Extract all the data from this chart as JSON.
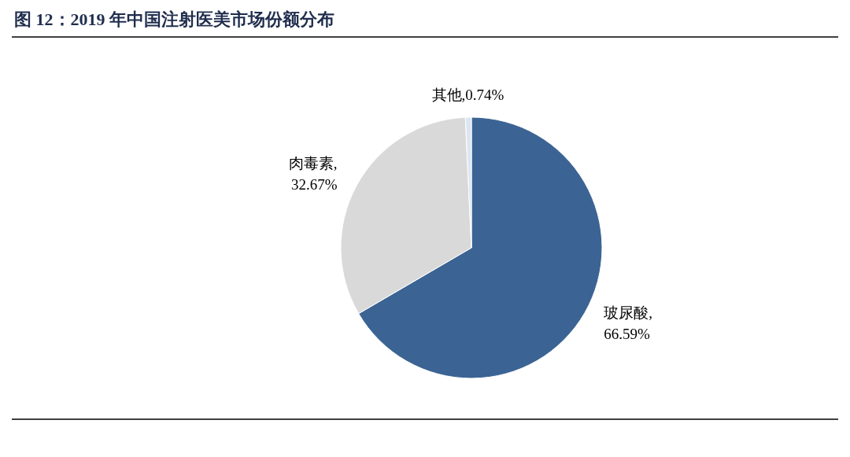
{
  "chart_data": {
    "type": "pie",
    "title": "图 12：2019 年中国注射医美市场份额分布",
    "categories": [
      "玻尿酸",
      "肉毒素",
      "其他"
    ],
    "values": [
      66.59,
      32.67,
      0.74
    ],
    "colors": [
      "#3b6494",
      "#d9d9d9",
      "#dce6f2"
    ],
    "value_labels": [
      ",\n66.59%",
      ",\n32.67%",
      ",0.74%"
    ]
  }
}
